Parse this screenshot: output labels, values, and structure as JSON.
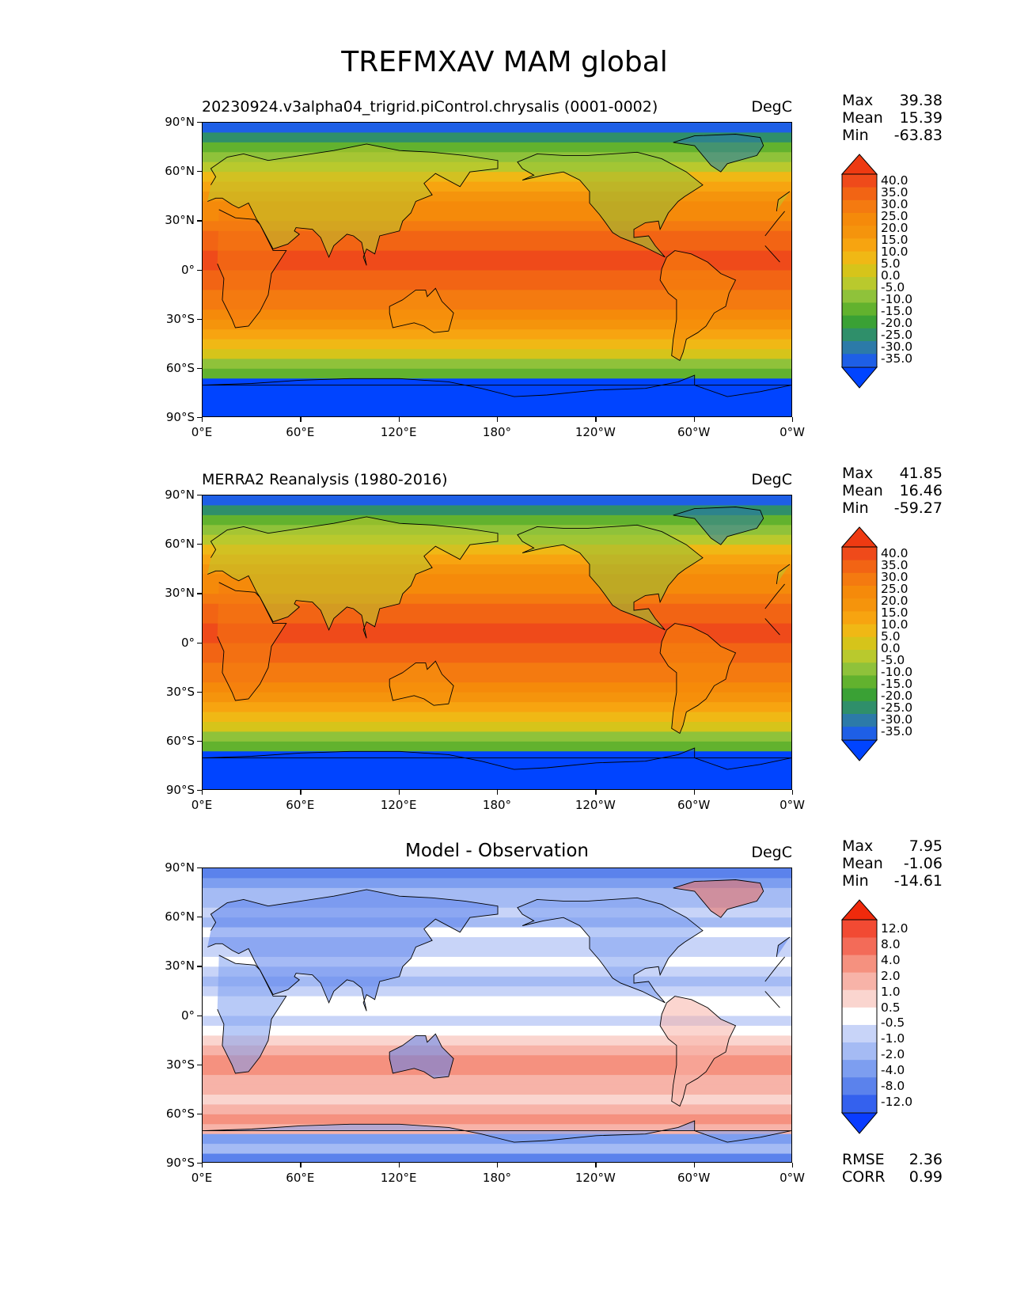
{
  "figure": {
    "title": "TREFMXAV MAM global"
  },
  "lat_ticks": [
    "90°N",
    "60°N",
    "30°N",
    "0°",
    "30°S",
    "60°S",
    "90°S"
  ],
  "lon_ticks": [
    "0°E",
    "60°E",
    "120°E",
    "180°",
    "120°W",
    "60°W",
    "0°W"
  ],
  "panels": [
    {
      "title": "20230924.v3alpha04_trigrid.piControl.chrysalis (0001-0002)",
      "units": "DegC",
      "stats": {
        "max_label": "Max",
        "max": "39.38",
        "mean_label": "Mean",
        "mean": "15.39",
        "min_label": "Min",
        "min": "-63.83"
      },
      "colorbar": [
        "40.0",
        "35.0",
        "30.0",
        "25.0",
        "20.0",
        "15.0",
        "10.0",
        "5.0",
        "0.0",
        "-5.0",
        "-10.0",
        "-15.0",
        "-20.0",
        "-25.0",
        "-30.0",
        "-35.0"
      ]
    },
    {
      "title": "MERRA2 Reanalysis (1980-2016)",
      "units": "DegC",
      "stats": {
        "max_label": "Max",
        "max": "41.85",
        "mean_label": "Mean",
        "mean": "16.46",
        "min_label": "Min",
        "min": "-59.27"
      },
      "colorbar": [
        "40.0",
        "35.0",
        "30.0",
        "25.0",
        "20.0",
        "15.0",
        "10.0",
        "5.0",
        "0.0",
        "-5.0",
        "-10.0",
        "-15.0",
        "-20.0",
        "-25.0",
        "-30.0",
        "-35.0"
      ]
    },
    {
      "title": "Model - Observation",
      "units": "DegC",
      "stats": {
        "max_label": "Max",
        "max": "7.95",
        "mean_label": "Mean",
        "mean": "-1.06",
        "min_label": "Min",
        "min": "-14.61"
      },
      "colorbar": [
        "12.0",
        "8.0",
        "4.0",
        "2.0",
        "1.0",
        "0.5",
        "-0.5",
        "-1.0",
        "-2.0",
        "-4.0",
        "-8.0",
        "-12.0"
      ],
      "extra": {
        "rmse_label": "RMSE",
        "rmse": "2.36",
        "corr_label": "CORR",
        "corr": "0.99"
      }
    }
  ],
  "colors": {
    "temp_scale": [
      "#0044ff",
      "#1e5fe6",
      "#2c7aa8",
      "#2f8f6a",
      "#3aa135",
      "#62b22e",
      "#8fc23a",
      "#b9c92d",
      "#d6c41a",
      "#f0b815",
      "#f7a410",
      "#f5940c",
      "#f58a0a",
      "#f47a10",
      "#f26414",
      "#ef4a1a",
      "#ee3a12"
    ],
    "diff_scale": [
      "#0a3cff",
      "#3461ee",
      "#5b82ec",
      "#7d9ef0",
      "#a5bbf4",
      "#c8d4f8",
      "#ffffff",
      "#fad5cf",
      "#f7b3a8",
      "#f5917f",
      "#f36b58",
      "#f24a33",
      "#f02a0c"
    ],
    "coastline": "#000000"
  }
}
